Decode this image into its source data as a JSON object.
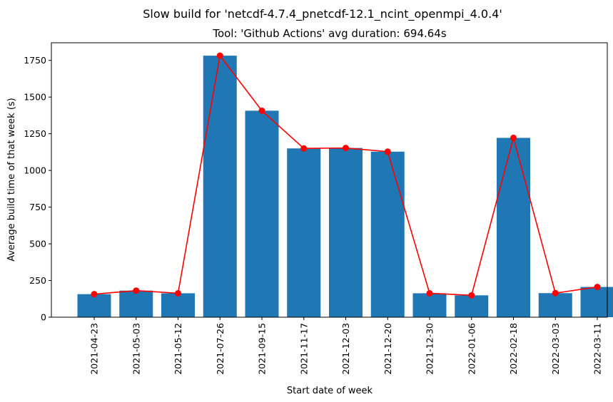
{
  "chart_data": {
    "type": "bar",
    "suptitle": "Slow build for 'netcdf-4.7.4_pnetcdf-12.1_ncint_openmpi_4.0.4'",
    "title": "Tool: 'Github Actions' avg duration: 694.64s",
    "xlabel": "Start date of week",
    "ylabel": "Average build time of that week (s)",
    "categories": [
      "2021-04-23",
      "2021-05-03",
      "2021-05-12",
      "2021-07-26",
      "2021-09-15",
      "2021-11-17",
      "2021-12-03",
      "2021-12-20",
      "2021-12-30",
      "2022-01-06",
      "2022-02-18",
      "2022-03-03",
      "2022-03-11"
    ],
    "values": [
      157,
      181,
      163,
      1782,
      1407,
      1150,
      1153,
      1128,
      163,
      149,
      1222,
      164,
      206
    ],
    "ylim": [
      0,
      1870
    ],
    "yticks": [
      0,
      250,
      500,
      750,
      1000,
      1250,
      1500,
      1750
    ],
    "bar_color": "#1f77b4",
    "line_color": "#ff0000",
    "overlay": "line-with-markers",
    "grid": false,
    "legend": "none"
  }
}
